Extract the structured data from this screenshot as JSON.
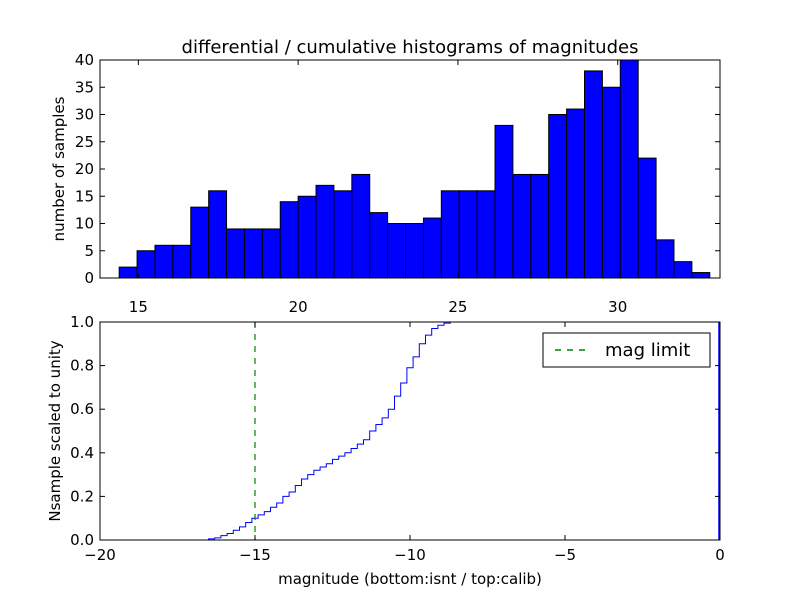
{
  "chart_data": [
    {
      "type": "bar",
      "title": "differential / cumulative histograms of magnitudes",
      "xlabel": "",
      "ylabel": "number of samples",
      "xlim": [
        13.8,
        33.2
      ],
      "ylim": [
        0,
        40
      ],
      "x_ticks": [
        15,
        20,
        25,
        30
      ],
      "y_ticks": [
        0,
        5,
        10,
        15,
        20,
        25,
        30,
        35,
        40
      ],
      "bar_color": "#0000ff",
      "edge_color": "#000000",
      "bin_edges": [
        14.4,
        14.96,
        15.52,
        16.08,
        16.64,
        17.2,
        17.76,
        18.32,
        18.88,
        19.44,
        20.0,
        20.56,
        21.12,
        21.68,
        22.24,
        22.8,
        23.36,
        23.92,
        24.48,
        25.04,
        25.6,
        26.16,
        26.72,
        27.28,
        27.84,
        28.4,
        28.96,
        29.52,
        30.08,
        30.64,
        31.2,
        31.76,
        32.32,
        32.88
      ],
      "values": [
        2,
        5,
        6,
        6,
        13,
        16,
        9,
        9,
        9,
        14,
        15,
        17,
        16,
        19,
        12,
        10,
        10,
        11,
        16,
        16,
        16,
        28,
        19,
        19,
        30,
        31,
        38,
        35,
        40,
        22,
        7,
        3,
        1
      ]
    },
    {
      "type": "line",
      "xlabel": "magnitude (bottom:isnt / top:calib)",
      "ylabel": "Nsample scaled to unity",
      "xlim": [
        -20,
        0
      ],
      "ylim": [
        0.0,
        1.0
      ],
      "x_ticks": [
        -20,
        -15,
        -10,
        -5,
        0
      ],
      "x_tick_labels": [
        "−20",
        "−15",
        "−10",
        "−5",
        "0"
      ],
      "y_ticks": [
        0.0,
        0.2,
        0.4,
        0.6,
        0.8,
        1.0
      ],
      "y_tick_labels": [
        "0.0",
        "0.2",
        "0.4",
        "0.6",
        "0.8",
        "1.0"
      ],
      "series": [
        {
          "name": "cumulative",
          "color": "#0000ff",
          "step": true,
          "x": [
            -20.0,
            -16.5,
            -16.3,
            -16.1,
            -15.9,
            -15.7,
            -15.5,
            -15.3,
            -15.1,
            -14.9,
            -14.7,
            -14.5,
            -14.3,
            -14.1,
            -13.9,
            -13.7,
            -13.5,
            -13.3,
            -13.1,
            -12.9,
            -12.7,
            -12.5,
            -12.3,
            -12.1,
            -11.9,
            -11.7,
            -11.5,
            -11.3,
            -11.1,
            -10.9,
            -10.7,
            -10.5,
            -10.3,
            -10.1,
            -9.9,
            -9.7,
            -9.5,
            -9.3,
            -9.1,
            -8.9,
            -8.7
          ],
          "y": [
            0.0,
            0.005,
            0.01,
            0.02,
            0.03,
            0.045,
            0.06,
            0.08,
            0.1,
            0.115,
            0.13,
            0.15,
            0.17,
            0.2,
            0.22,
            0.25,
            0.28,
            0.3,
            0.32,
            0.335,
            0.35,
            0.37,
            0.385,
            0.4,
            0.42,
            0.44,
            0.46,
            0.5,
            0.53,
            0.56,
            0.6,
            0.66,
            0.72,
            0.79,
            0.84,
            0.9,
            0.94,
            0.97,
            0.985,
            0.995,
            1.0
          ]
        }
      ],
      "vline": {
        "x": -15,
        "color": "#008000",
        "style": "dashed"
      },
      "edge_mark": {
        "x": 0,
        "y": 1.0,
        "color": "#0000ff"
      },
      "legend": {
        "label": "mag limit",
        "position": "top-right",
        "line_color": "#008000"
      }
    }
  ]
}
